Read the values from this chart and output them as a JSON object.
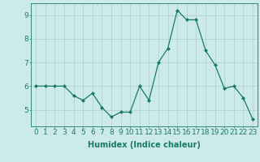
{
  "x": [
    0,
    1,
    2,
    3,
    4,
    5,
    6,
    7,
    8,
    9,
    10,
    11,
    12,
    13,
    14,
    15,
    16,
    17,
    18,
    19,
    20,
    21,
    22,
    23
  ],
  "y": [
    6.0,
    6.0,
    6.0,
    6.0,
    5.6,
    5.4,
    5.7,
    5.1,
    4.7,
    4.9,
    4.9,
    6.0,
    5.4,
    7.0,
    7.6,
    9.2,
    8.8,
    8.8,
    7.5,
    6.9,
    5.9,
    6.0,
    5.5,
    4.6
  ],
  "line_color": "#1a7a6a",
  "marker": "D",
  "marker_size": 2.0,
  "bg_color": "#cceaea",
  "grid_color": "#aacece",
  "xlabel": "Humidex (Indice chaleur)",
  "xlim": [
    -0.5,
    23.5
  ],
  "ylim": [
    4.3,
    9.5
  ],
  "yticks": [
    5,
    6,
    7,
    8,
    9
  ],
  "xticks": [
    0,
    1,
    2,
    3,
    4,
    5,
    6,
    7,
    8,
    9,
    10,
    11,
    12,
    13,
    14,
    15,
    16,
    17,
    18,
    19,
    20,
    21,
    22,
    23
  ],
  "xlabel_fontsize": 7,
  "tick_fontsize": 6.5,
  "tick_color": "#1a7a6a",
  "axis_color": "#1a7a6a"
}
